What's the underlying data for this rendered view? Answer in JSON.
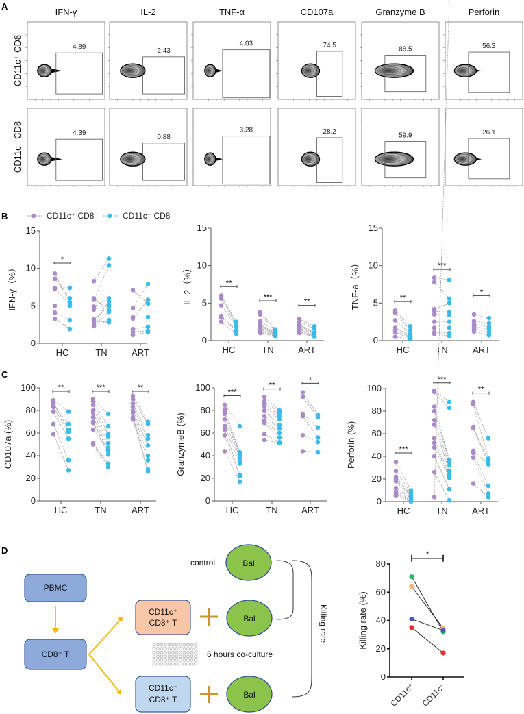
{
  "panel_letters": {
    "a": "A",
    "b": "B",
    "c": "C",
    "d": "D"
  },
  "colors": {
    "cd11c_pos": "#a98bc8",
    "cd11c_neg": "#3bbbea",
    "box_dark": "#8eaadb",
    "box_pos": "#f8c7a8",
    "box_neg": "#bfd8ef",
    "bal": "#8cc44b",
    "arrow": "#f5b800",
    "plus": "#c8962a"
  },
  "flow": {
    "columns": [
      "IFN-γ",
      "IL-2",
      "TNF-α",
      "CD107a",
      "Granzyme B",
      "Perforin"
    ],
    "rows": [
      "CD11c⁺ CD8",
      "CD11c⁻ CD8"
    ],
    "gate_values": [
      [
        "4.89",
        "2.43",
        "4.03",
        "74.5",
        "88.5",
        "56.3"
      ],
      [
        "4.39",
        "0.88",
        "3.28",
        "28.2",
        "59.9",
        "26.1"
      ]
    ]
  },
  "legend": {
    "pos": "CD11c⁺ CD8",
    "neg": "CD11c⁻ CD8"
  },
  "chart_data": [
    {
      "type": "scatter",
      "ylabel": "IFN-γ（%）",
      "ylim": [
        0,
        15
      ],
      "yticks": [
        0,
        5,
        10,
        15
      ],
      "categories": [
        "HC",
        "TN",
        "ART"
      ],
      "series": [
        {
          "name": "CD11c⁺ CD8",
          "values": [
            [
              9.3,
              8.6,
              7.4,
              7.3,
              5.0,
              4.1,
              3.3
            ],
            [
              8.3,
              6.0,
              5.8,
              4.9,
              4.5,
              3.2,
              3.0,
              2.7,
              2.4,
              2.3
            ],
            [
              7.1,
              4.7,
              3.5,
              3.3,
              1.9,
              1.5,
              1.1
            ]
          ]
        },
        {
          "name": "CD11c⁻ CD8",
          "values": [
            [
              5.5,
              6.0,
              7.4,
              5.2,
              5.0,
              3.1,
              1.9
            ],
            [
              11.3,
              4.4,
              10.4,
              6.0,
              5.2,
              4.9,
              2.8,
              5.6,
              4.2,
              3.1
            ],
            [
              5.3,
              7.9,
              3.5,
              5.8,
              2.2,
              1.7,
              1.5
            ]
          ]
        }
      ],
      "significance": [
        {
          "category": "HC",
          "label": "*",
          "y": 10.7
        }
      ]
    },
    {
      "type": "scatter",
      "ylabel": "IL-2（%）",
      "ylim": [
        0,
        15
      ],
      "yticks": [
        0,
        5,
        10,
        15
      ],
      "categories": [
        "HC",
        "TN",
        "ART"
      ],
      "series": [
        {
          "name": "CD11c⁺ CD8",
          "values": [
            [
              6.0,
              5.8,
              5.6,
              4.7,
              3.3,
              3.1,
              2.5
            ],
            [
              3.8,
              3.5,
              2.6,
              2.1,
              1.9,
              1.7,
              1.5,
              1.3,
              1.1,
              1.0
            ],
            [
              2.9,
              2.5,
              2.1,
              1.9,
              1.7,
              1.5,
              1.2,
              1.0
            ]
          ]
        },
        {
          "name": "CD11c⁻ CD8",
          "values": [
            [
              2.5,
              2.3,
              2.0,
              1.9,
              1.4,
              1.3,
              0.9
            ],
            [
              1.5,
              1.3,
              1.2,
              1.1,
              1.0,
              0.9,
              0.8,
              0.7,
              0.6,
              0.6
            ],
            [
              1.9,
              1.6,
              1.1,
              1.0,
              0.8,
              0.6,
              0.5,
              0.5
            ]
          ]
        }
      ],
      "significance": [
        {
          "category": "HC",
          "label": "**",
          "y": 7.2
        },
        {
          "category": "TN",
          "label": "***",
          "y": 5.3
        },
        {
          "category": "ART",
          "label": "**",
          "y": 4.7
        }
      ]
    },
    {
      "type": "scatter",
      "ylabel": "TNF-a（%）",
      "ylim": [
        0,
        15
      ],
      "yticks": [
        0,
        5,
        10,
        15
      ],
      "categories": [
        "HC",
        "TN",
        "ART"
      ],
      "series": [
        {
          "name": "CD11c⁺ CD8",
          "values": [
            [
              4.0,
              3.7,
              2.7,
              1.7,
              1.3,
              1.1,
              0.5
            ],
            [
              8.4,
              7.8,
              4.2,
              3.9,
              3.5,
              2.5,
              1.7,
              1.1,
              0.9
            ],
            [
              3.5,
              2.6,
              2.2,
              1.9,
              1.6,
              1.2
            ]
          ]
        },
        {
          "name": "CD11c⁻ CD8",
          "values": [
            [
              1.9,
              1.4,
              0.9,
              0.7,
              0.5,
              0.3,
              0.2
            ],
            [
              8.1,
              5.6,
              5.0,
              3.8,
              3.4,
              2.5,
              1.7,
              1.0,
              0.6
            ],
            [
              3.0,
              2.3,
              1.8,
              1.5,
              1.1,
              0.7
            ]
          ]
        }
      ],
      "significance": [
        {
          "category": "HC",
          "label": "**",
          "y": 5.2
        },
        {
          "category": "TN",
          "label": "***",
          "y": 9.5
        },
        {
          "category": "ART",
          "label": "*",
          "y": 6.0
        }
      ]
    },
    {
      "type": "scatter",
      "ylabel": "CD107a (%)",
      "ylim": [
        0,
        100
      ],
      "yticks": [
        0,
        20,
        40,
        60,
        80,
        100
      ],
      "categories": [
        "HC",
        "TN",
        "ART"
      ],
      "series": [
        {
          "name": "CD11c⁺ CD8",
          "values": [
            [
              89,
              87,
              85,
              83,
              79,
              68,
              59
            ],
            [
              90,
              88,
              85,
              80,
              78,
              74,
              70,
              69,
              63,
              51,
              50
            ],
            [
              93,
              90,
              86,
              83,
              80,
              78,
              74,
              73,
              72
            ]
          ]
        },
        {
          "name": "CD11c⁻ CD8",
          "values": [
            [
              79,
              63,
              68,
              61,
              55,
              36,
              27
            ],
            [
              77,
              66,
              59,
              57,
              51,
              47,
              44,
              41,
              45,
              33,
              30
            ],
            [
              70,
              68,
              58,
              55,
              49,
              40,
              36,
              28,
              26
            ]
          ]
        }
      ],
      "significance": [
        {
          "category": "HC",
          "label": "**",
          "y": 97
        },
        {
          "category": "TN",
          "label": "***",
          "y": 97
        },
        {
          "category": "ART",
          "label": "**",
          "y": 97
        }
      ]
    },
    {
      "type": "scatter",
      "ylabel": "GranzymeB (%)",
      "ylim": [
        0,
        100
      ],
      "yticks": [
        0,
        20,
        40,
        60,
        80,
        100
      ],
      "categories": [
        "HC",
        "TN",
        "ART"
      ],
      "series": [
        {
          "name": "CD11c⁺ CD8",
          "values": [
            [
              85,
              81,
              79,
              77,
              72,
              66,
              63,
              58,
              44
            ],
            [
              92,
              88,
              86,
              84,
              80,
              75,
              71,
              69,
              59,
              54
            ],
            [
              96,
              92,
              77,
              75,
              58,
              44
            ]
          ]
        },
        {
          "name": "CD11c⁻ CD8",
          "values": [
            [
              66,
              43,
              41,
              38,
              35,
              33,
              23,
              22,
              17
            ],
            [
              80,
              78,
              75,
              72,
              67,
              64,
              60,
              56,
              52,
              51
            ],
            [
              76,
              74,
              65,
              56,
              52,
              43
            ]
          ]
        }
      ],
      "significance": [
        {
          "category": "HC",
          "label": "***",
          "y": 93
        },
        {
          "category": "TN",
          "label": "**",
          "y": 99
        },
        {
          "category": "ART",
          "label": "*",
          "y": 104
        }
      ]
    },
    {
      "type": "scatter",
      "ylabel": "Perforin (%)",
      "ylim": [
        0,
        100
      ],
      "yticks": [
        0,
        20,
        40,
        60,
        80,
        100
      ],
      "categories": [
        "HC",
        "TN",
        "ART"
      ],
      "series": [
        {
          "name": "CD11c⁺ CD8",
          "values": [
            [
              35,
              27,
              22,
              20,
              18,
              12,
              9,
              7,
              6,
              5
            ],
            [
              98,
              97,
              84,
              80,
              72,
              68,
              56,
              52,
              48,
              40,
              26,
              4
            ],
            [
              88,
              86,
              66,
              65,
              45,
              43,
              39,
              16
            ]
          ]
        },
        {
          "name": "CD11c⁻ CD8",
          "values": [
            [
              10,
              8,
              6,
              5,
              4,
              3,
              2,
              1,
              0.5,
              0
            ],
            [
              88,
              83,
              37,
              35,
              32,
              27,
              24,
              22,
              21,
              11,
              1
            ],
            [
              56,
              38,
              36,
              34,
              33,
              14,
              7,
              4
            ]
          ]
        }
      ],
      "significance": [
        {
          "category": "HC",
          "label": "***",
          "y": 43
        },
        {
          "category": "TN",
          "label": "***",
          "y": 105
        },
        {
          "category": "ART",
          "label": "**",
          "y": 96
        }
      ]
    },
    {
      "type": "line",
      "ylabel": "Killing rate (%)",
      "ylim": [
        0,
        80
      ],
      "yticks": [
        0,
        20,
        40,
        60,
        80
      ],
      "categories": [
        "CD11c⁺",
        "CD11c⁻"
      ],
      "series": [
        {
          "name": "donor-green",
          "color": "#2bb673",
          "values": [
            71,
            32
          ]
        },
        {
          "name": "donor-orange",
          "color": "#f7b57a",
          "values": [
            64,
            34.5
          ]
        },
        {
          "name": "donor-blue",
          "color": "#4a5bb0",
          "values": [
            41,
            33
          ]
        },
        {
          "name": "donor-red",
          "color": "#ee2a2a",
          "values": [
            35,
            17
          ]
        }
      ],
      "significance": [
        {
          "label": "*",
          "y": 84
        }
      ]
    }
  ],
  "diagram": {
    "pbmc": "PBMC",
    "cd8": "CD8⁺ T",
    "pos_line1": "CD11c⁺",
    "pos_line2": "CD8⁺ T",
    "neg_line1": "CD11c⁻",
    "neg_line2": "CD8⁺ T",
    "control": "control",
    "bal": "Bal",
    "coculture": "6 hours co-culture",
    "killing_rate": "Killing rate"
  }
}
